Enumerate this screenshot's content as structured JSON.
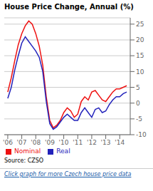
{
  "chart_data": {
    "type": "line",
    "title": "House Price Change, Annual (%)",
    "x": [
      2006.0,
      2006.25,
      2006.5,
      2006.75,
      2007.0,
      2007.25,
      2007.5,
      2007.75,
      2008.0,
      2008.25,
      2008.5,
      2008.75,
      2009.0,
      2009.25,
      2009.5,
      2009.75,
      2010.0,
      2010.25,
      2010.5,
      2010.75,
      2011.0,
      2011.25,
      2011.5,
      2011.75,
      2012.0,
      2012.25,
      2012.5,
      2012.75,
      2013.0,
      2013.25,
      2013.5,
      2013.75,
      2014.0,
      2014.25,
      2014.5
    ],
    "series": [
      {
        "name": "Nominal",
        "color": "#ee1111",
        "values": [
          3.5,
          8.0,
          13.5,
          18.5,
          22.0,
          24.5,
          26.0,
          25.0,
          22.0,
          18.0,
          12.0,
          2.0,
          -5.5,
          -7.8,
          -7.0,
          -5.5,
          -3.0,
          -1.5,
          -2.5,
          -4.5,
          -3.5,
          0.5,
          2.0,
          1.0,
          3.5,
          4.0,
          2.5,
          1.0,
          0.5,
          2.0,
          3.5,
          4.5,
          4.5,
          5.0,
          5.5
        ]
      },
      {
        "name": "Real",
        "color": "#2222bb",
        "values": [
          1.5,
          5.0,
          10.5,
          15.0,
          19.0,
          21.0,
          19.5,
          18.0,
          16.5,
          14.5,
          10.0,
          0.5,
          -6.5,
          -8.3,
          -7.5,
          -6.0,
          -4.5,
          -3.5,
          -4.5,
          -5.5,
          -5.5,
          -3.0,
          -1.5,
          -3.0,
          -4.5,
          -2.0,
          -1.5,
          -3.0,
          -2.5,
          -0.5,
          1.0,
          2.0,
          2.0,
          3.0,
          3.5
        ]
      }
    ],
    "xlim": [
      2005.75,
      2014.75
    ],
    "xticks": [
      {
        "value": 2006,
        "label": "'06"
      },
      {
        "value": 2007,
        "label": "'07"
      },
      {
        "value": 2008,
        "label": "'08"
      },
      {
        "value": 2009,
        "label": "'09"
      },
      {
        "value": 2010,
        "label": "'10"
      },
      {
        "value": 2011,
        "label": "'11"
      },
      {
        "value": 2012,
        "label": "'12"
      },
      {
        "value": 2013,
        "label": "'13"
      },
      {
        "value": 2014,
        "label": "'14"
      }
    ],
    "ylim": [
      -10,
      27
    ],
    "yticks": [
      -10,
      -5,
      0,
      5,
      10,
      15,
      20,
      25
    ],
    "grid": true,
    "legend": "bottom",
    "annotations": [
      "Source: CZSO",
      "Click graph for more Czech house price data"
    ]
  }
}
